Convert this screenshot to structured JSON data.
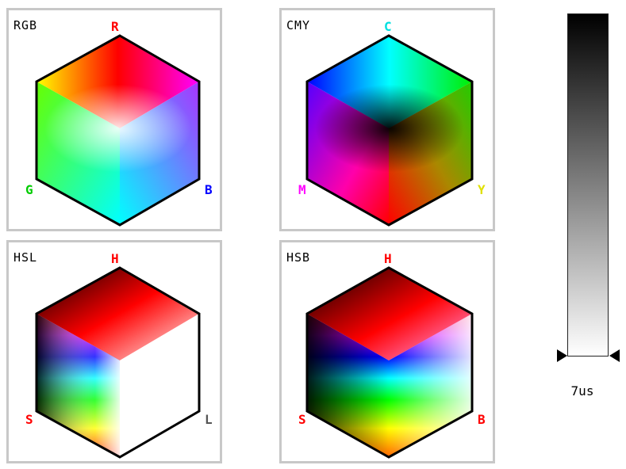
{
  "panels": [
    {
      "id": "rgb",
      "title": "RGB",
      "top_label": "R",
      "left_label": "G",
      "right_label": "B",
      "top_color": "#ff0000",
      "left_color": "#00cc00",
      "right_color": "#0000ff"
    },
    {
      "id": "cmy",
      "title": "CMY",
      "top_label": "C",
      "left_label": "M",
      "right_label": "Y",
      "top_color": "#00e0e0",
      "left_color": "#ff00ff",
      "right_color": "#e0e000"
    },
    {
      "id": "hsl",
      "title": "HSL",
      "top_label": "H",
      "left_label": "S",
      "right_label": "L",
      "top_color": "#ff0000",
      "left_color": "#ff0000",
      "right_color": "#555555"
    },
    {
      "id": "hsb",
      "title": "HSB",
      "top_label": "H",
      "left_label": "S",
      "right_label": "B",
      "top_color": "#ff0000",
      "left_color": "#ff0000",
      "right_color": "#ff0000"
    }
  ],
  "gradient": {
    "top_color": "#000000",
    "bottom_color": "#ffffff",
    "level": 1.0
  },
  "timing": "7us"
}
